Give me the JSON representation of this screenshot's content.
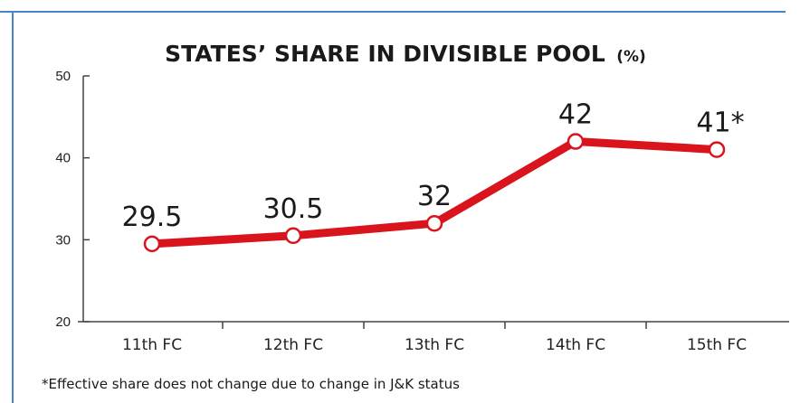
{
  "chart_data": {
    "type": "line",
    "title": "STATES’ SHARE IN DIVISIBLE POOL",
    "title_unit": "(%)",
    "categories": [
      "11th FC",
      "12th FC",
      "13th FC",
      "14th FC",
      "15th FC"
    ],
    "values": [
      29.5,
      30.5,
      32,
      42,
      41
    ],
    "data_labels": [
      "29.5",
      "30.5",
      "32",
      "42",
      "41*"
    ],
    "yticks": [
      20,
      30,
      40,
      50
    ],
    "ylim": [
      20,
      50
    ],
    "grid": false,
    "footnote": "*Effective share does not change due to change in J&K status",
    "colors": {
      "line": "#d9141c",
      "marker_fill": "#ffffff",
      "frame": "#4a86c5",
      "axis": "#444444"
    }
  }
}
